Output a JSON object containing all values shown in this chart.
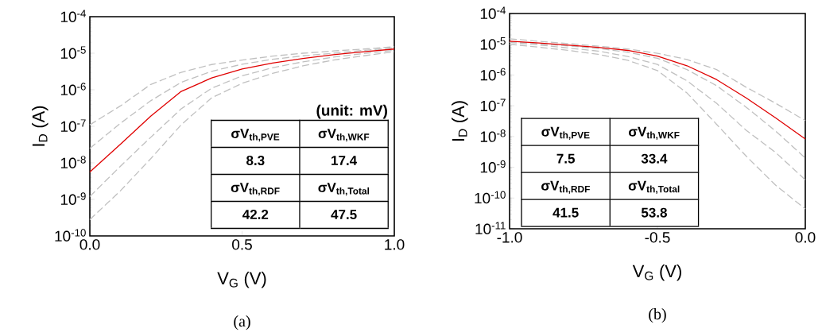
{
  "chart_data": [
    {
      "type": "line",
      "xlabel": "V$_{G}$ (V)",
      "ylabel": "I$_{D}$ (A)",
      "log": "y",
      "grid": false,
      "marker": "none",
      "xlim": [
        0,
        1
      ],
      "xticks": [
        {
          "value": 0,
          "label": "0.0"
        },
        0.5,
        {
          "value": 1,
          "label": "1.0"
        }
      ],
      "ylim": [
        1e-10,
        0.0001
      ],
      "yticks": [
        {
          "value": 1e-10,
          "label": "10$^{-10}$"
        },
        {
          "value": 1e-09,
          "label": "10$^{-9}$"
        },
        {
          "value": 1e-08,
          "label": "10$^{-8}$"
        },
        {
          "value": 1e-07,
          "label": "10$^{-7}$"
        },
        {
          "value": 1e-06,
          "label": "10$^{-6}$"
        },
        {
          "value": 1e-05,
          "label": "10$^{-5}$"
        },
        {
          "value": 0.0001,
          "label": "10$^{-4}$"
        }
      ],
      "x": [
        0,
        0.1,
        0.2,
        0.3,
        0.4,
        0.5,
        0.6,
        0.7,
        0.8,
        0.9,
        1.0
      ],
      "series": [
        {
          "color": "#c0c0c0",
          "line_style": "dashed",
          "values": [
            1.1e-07,
            3.6e-07,
            1.4e-06,
            3e-06,
            4.9e-06,
            6.5e-06,
            8.3e-06,
            1e-05,
            1.15e-05,
            1.3e-05,
            1.5e-05
          ]
        },
        {
          "color": "#c0c0c0",
          "line_style": "dashed",
          "values": [
            2.5e-08,
            1.2e-07,
            5e-07,
            1.6e-06,
            3.2e-06,
            5e-06,
            6.8e-06,
            8.5e-06,
            1e-05,
            1.2e-05,
            1.4e-05
          ]
        },
        {
          "color": "#c0c0c0",
          "line_style": "dashed",
          "values": [
            1.2e-09,
            8e-09,
            5e-08,
            3e-07,
            1.1e-06,
            2.4e-06,
            4e-06,
            5.8e-06,
            7.8e-06,
            9.8e-06,
            1.2e-05
          ]
        },
        {
          "color": "#c0c0c0",
          "line_style": "dashed",
          "values": [
            2.8e-10,
            1.7e-09,
            1.3e-08,
            1.1e-07,
            6e-07,
            1.5e-06,
            2.8e-06,
            4.5e-06,
            6.5e-06,
            8.5e-06,
            1.1e-05
          ]
        },
        {
          "color": "#e00000",
          "line_style": "solid",
          "values": [
            5.6e-09,
            3.2e-08,
            1.9e-07,
            9e-07,
            2.1e-06,
            3.7e-06,
            5.4e-06,
            7.2e-06,
            9.1e-06,
            1.1e-05,
            1.3e-05
          ]
        }
      ],
      "annotations": [
        "(unit: mV)",
        "σV$_{th,PVE}$",
        "σV$_{th,WKF}$",
        "8.3",
        "17.4",
        "σV$_{th,RDF}$",
        "σV$_{th,Total}$",
        "42.2",
        "47.5",
        "(a)"
      ]
    },
    {
      "type": "line",
      "xlabel": "V$_{G}$ (V)",
      "ylabel": "I$_{D}$ (A)",
      "log": "y",
      "grid": false,
      "marker": "none",
      "xlim": [
        -1,
        0
      ],
      "xticks": [
        {
          "value": -1,
          "label": "-1.0"
        },
        -0.5,
        {
          "value": 0,
          "label": "0.0"
        }
      ],
      "ylim": [
        1e-11,
        0.0001
      ],
      "yticks": [
        {
          "value": 1e-11,
          "label": "10$^{-11}$"
        },
        {
          "value": 1e-10,
          "label": "10$^{-10}$"
        },
        {
          "value": 1e-09,
          "label": "10$^{-9}$"
        },
        {
          "value": 1e-08,
          "label": "10$^{-8}$"
        },
        {
          "value": 1e-07,
          "label": "10$^{-7}$"
        },
        {
          "value": 1e-06,
          "label": "10$^{-6}$"
        },
        {
          "value": 1e-05,
          "label": "10$^{-5}$"
        },
        {
          "value": 0.0001,
          "label": "10$^{-4}$"
        }
      ],
      "x": [
        -1.0,
        -0.9,
        -0.8,
        -0.7,
        -0.6,
        -0.5,
        -0.4,
        -0.3,
        -0.2,
        -0.1,
        0
      ],
      "series": [
        {
          "color": "#c0c0c0",
          "line_style": "dashed",
          "values": [
            1.5e-05,
            1.25e-05,
            1.05e-05,
            8.7e-06,
            7e-06,
            5.1e-06,
            3.2e-06,
            1.5e-06,
            4e-07,
            1.2e-07,
            3.3e-08
          ]
        },
        {
          "color": "#c0c0c0",
          "line_style": "dashed",
          "values": [
            1.2e-05,
            1.05e-05,
            8.8e-06,
            7.3e-06,
            5.5e-06,
            3.5e-06,
            1.5e-06,
            4.5e-07,
            9e-08,
            1.5e-08,
            2e-09
          ]
        },
        {
          "color": "#c0c0c0",
          "line_style": "dashed",
          "values": [
            1.15e-05,
            9.5e-06,
            7.5e-06,
            6e-06,
            4e-06,
            2.2e-06,
            6.5e-07,
            1.2e-07,
            1.6e-08,
            3e-09,
            3.9e-10
          ]
        },
        {
          "color": "#c0c0c0",
          "line_style": "dashed",
          "values": [
            1e-05,
            8e-06,
            6.3e-06,
            4.7e-06,
            3e-06,
            1.4e-06,
            2.6e-07,
            2.5e-08,
            2.3e-09,
            2.6e-10,
            4.4e-11
          ]
        },
        {
          "color": "#e00000",
          "line_style": "solid",
          "values": [
            1.26e-05,
            1.1e-05,
            9.3e-06,
            7.9e-06,
            6.3e-06,
            4.1e-06,
            2e-06,
            7.1e-07,
            1.8e-07,
            4e-08,
            8.3e-09
          ]
        }
      ],
      "annotations": [
        "σV$_{th,PVE}$",
        "σV$_{th,WKF}$",
        "7.5",
        "33.4",
        "σV$_{th,RDF}$",
        "σV$_{th,Total}$",
        "41.5",
        "53.8",
        "(b)"
      ]
    }
  ]
}
